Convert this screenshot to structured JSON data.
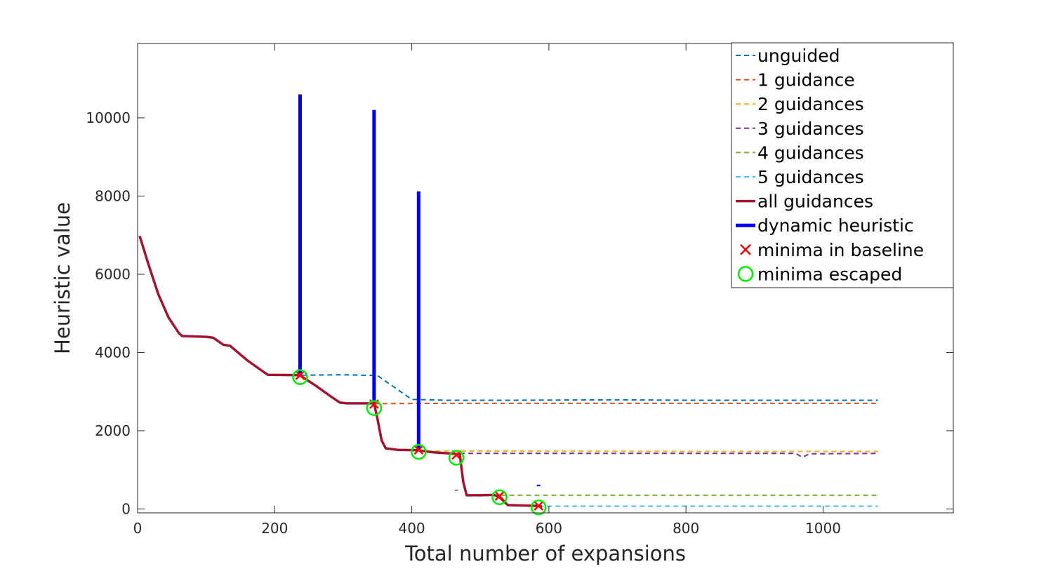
{
  "chart_data": {
    "type": "line",
    "xlabel": "Total number of expansions",
    "ylabel": "Heuristic value",
    "xlim": [
      0,
      1190
    ],
    "ylim": [
      -100,
      11900
    ],
    "xticks": [
      0,
      200,
      400,
      600,
      800,
      1000
    ],
    "yticks": [
      0,
      2000,
      4000,
      6000,
      8000,
      10000
    ],
    "legend_position": "top-right",
    "series": [
      {
        "name": "unguided",
        "style": "dashed",
        "color": "#0072bd",
        "points": [
          [
            240,
            3420
          ],
          [
            300,
            3430
          ],
          [
            350,
            3410
          ],
          [
            400,
            2800
          ],
          [
            450,
            2780
          ],
          [
            550,
            2780
          ],
          [
            700,
            2790
          ],
          [
            800,
            2780
          ],
          [
            1000,
            2780
          ],
          [
            1080,
            2780
          ]
        ]
      },
      {
        "name": "1 guidance",
        "style": "dashed",
        "color": "#d95319",
        "points": [
          [
            345,
            2690
          ],
          [
            450,
            2700
          ],
          [
            700,
            2700
          ],
          [
            900,
            2700
          ],
          [
            1080,
            2700
          ]
        ]
      },
      {
        "name": "2 guidances",
        "style": "dashed",
        "color": "#edb120",
        "points": [
          [
            410,
            1480
          ],
          [
            500,
            1480
          ],
          [
            800,
            1470
          ],
          [
            1080,
            1470
          ]
        ]
      },
      {
        "name": "3 guidances",
        "style": "dashed",
        "color": "#7e2f8e",
        "points": [
          [
            470,
            1420
          ],
          [
            700,
            1420
          ],
          [
            960,
            1420
          ],
          [
            970,
            1320
          ],
          [
            980,
            1410
          ],
          [
            1080,
            1420
          ]
        ]
      },
      {
        "name": "4 guidances",
        "style": "dashed",
        "color": "#77ac30",
        "points": [
          [
            530,
            350
          ],
          [
            700,
            350
          ],
          [
            900,
            350
          ],
          [
            1080,
            350
          ]
        ]
      },
      {
        "name": "5 guidances",
        "style": "dashed",
        "color": "#4dbeee",
        "points": [
          [
            585,
            70
          ],
          [
            800,
            70
          ],
          [
            1000,
            70
          ],
          [
            1080,
            70
          ]
        ]
      },
      {
        "name": "all guidances",
        "style": "solid",
        "color": "#a2142f",
        "points": [
          [
            3,
            6980
          ],
          [
            15,
            6300
          ],
          [
            30,
            5500
          ],
          [
            45,
            4900
          ],
          [
            60,
            4500
          ],
          [
            65,
            4420
          ],
          [
            100,
            4400
          ],
          [
            110,
            4380
          ],
          [
            125,
            4200
          ],
          [
            135,
            4170
          ],
          [
            160,
            3800
          ],
          [
            180,
            3550
          ],
          [
            190,
            3430
          ],
          [
            237,
            3420
          ],
          [
            240,
            3380
          ],
          [
            260,
            3150
          ],
          [
            280,
            2900
          ],
          [
            295,
            2720
          ],
          [
            305,
            2700
          ],
          [
            345,
            2700
          ],
          [
            350,
            2300
          ],
          [
            356,
            1750
          ],
          [
            362,
            1550
          ],
          [
            380,
            1510
          ],
          [
            410,
            1500
          ],
          [
            430,
            1450
          ],
          [
            455,
            1420
          ],
          [
            470,
            1400
          ],
          [
            475,
            700
          ],
          [
            480,
            350
          ],
          [
            500,
            350
          ],
          [
            520,
            360
          ],
          [
            528,
            300
          ],
          [
            540,
            100
          ],
          [
            580,
            80
          ],
          [
            590,
            60
          ]
        ]
      },
      {
        "name": "dynamic heuristic",
        "style": "solid",
        "color": "#0000ee",
        "segments": [
          [
            [
              237,
              10600
            ],
            [
              237,
              3420
            ]
          ],
          [
            [
              345,
              10200
            ],
            [
              345,
              2700
            ]
          ],
          [
            [
              410,
              8120
            ],
            [
              410,
              1500
            ]
          ],
          [
            [
              465,
              490
            ],
            [
              465,
              470
            ]
          ],
          [
            [
              585,
              620
            ],
            [
              585,
              580
            ]
          ]
        ]
      }
    ],
    "minima_in_baseline": [
      [
        237,
        3420
      ],
      [
        345,
        2680
      ],
      [
        410,
        1510
      ],
      [
        465,
        1380
      ],
      [
        528,
        330
      ],
      [
        585,
        80
      ]
    ],
    "minima_escaped": [
      [
        237,
        3370
      ],
      [
        345,
        2580
      ],
      [
        410,
        1460
      ],
      [
        465,
        1310
      ],
      [
        528,
        300
      ],
      [
        585,
        40
      ]
    ],
    "legend": [
      {
        "label": "unguided",
        "marker": "dashed",
        "color": "#0072bd"
      },
      {
        "label": "1 guidance",
        "marker": "dashed",
        "color": "#d95319"
      },
      {
        "label": "2 guidances",
        "marker": "dashed",
        "color": "#edb120"
      },
      {
        "label": "3 guidances",
        "marker": "dashed",
        "color": "#7e2f8e"
      },
      {
        "label": "4 guidances",
        "marker": "dashed",
        "color": "#77ac30"
      },
      {
        "label": "5 guidances",
        "marker": "dashed",
        "color": "#4dbeee"
      },
      {
        "label": "all guidances",
        "marker": "solid",
        "color": "#a2142f"
      },
      {
        "label": "dynamic heuristic",
        "marker": "solid-thick",
        "color": "#0000ee"
      },
      {
        "label": "minima in baseline",
        "marker": "cross",
        "color": "#ff0000"
      },
      {
        "label": "minima escaped",
        "marker": "circle",
        "color": "#00ee00"
      }
    ]
  }
}
